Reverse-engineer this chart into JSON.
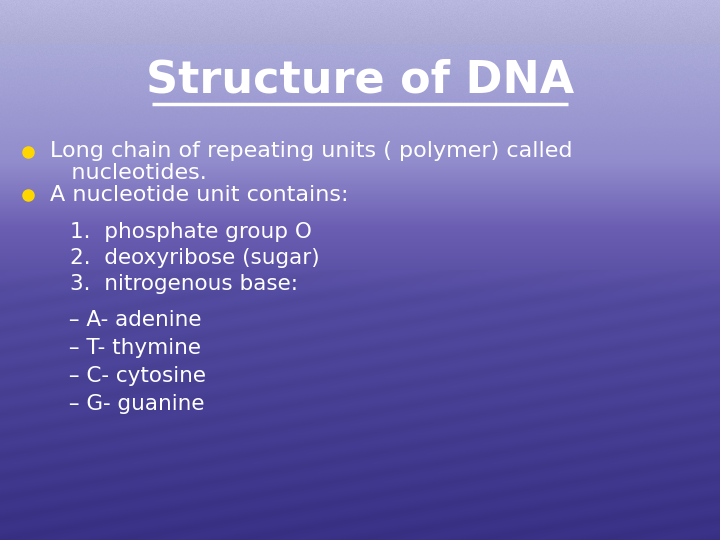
{
  "title": "Structure of DNA",
  "title_color": "#FFFFFF",
  "title_fontsize": 32,
  "bullet_color": "#FFD700",
  "text_color": "#FFFFFF",
  "text_fontsize": 16,
  "sub_fontsize": 15.5,
  "bullet1_line1": "Long chain of repeating units ( polymer) called",
  "bullet1_line2": "   nucleotides.",
  "bullet2": "A nucleotide unit contains:",
  "subitems": [
    "1.  phosphate group O",
    "2.  deoxyribose (sugar)",
    "3.  nitrogenous base:"
  ],
  "subitems2": [
    " – A- adenine",
    " – T- thymine",
    " – C- cytosine",
    " – G- guanine"
  ],
  "underline_color": "#FFFFFF"
}
